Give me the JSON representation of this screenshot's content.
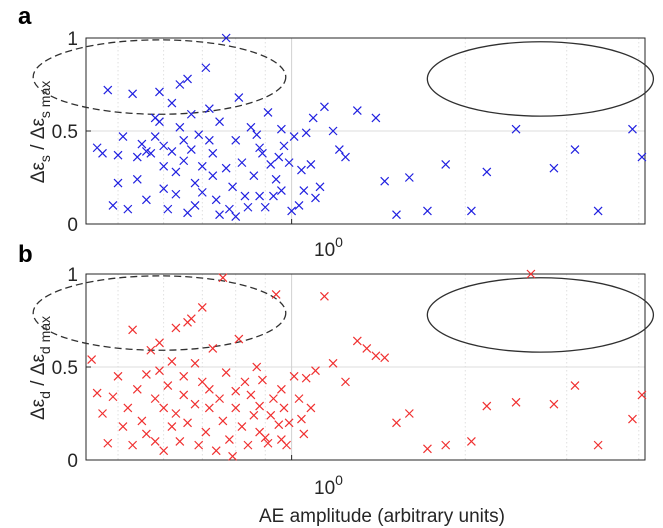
{
  "figure": {
    "xlabel": "AE amplitude (arbitrary units)",
    "x_tick_label": "10",
    "x_tick_exp": "0"
  },
  "chart_data": [
    {
      "type": "scatter",
      "panel": "a",
      "ylabel_main": "Δε",
      "ylabel_sub": "s",
      "ylabel_sep": " / Δε",
      "ylabel_sub2": "s max",
      "marker": "x",
      "color": "#2020e0",
      "x_scale": "log",
      "xlim": [
        0.44,
        4.1
      ],
      "ylim": [
        0,
        1
      ],
      "yticks": [
        "0",
        "0.5",
        "1"
      ],
      "grid": true,
      "ellipses": [
        {
          "style": "dashed",
          "cx": 0.59,
          "cy": 0.79,
          "rx_decades": 0.219,
          "ry": 0.2
        },
        {
          "style": "solid",
          "cx": 2.7,
          "cy": 0.78,
          "rx_decades": 0.196,
          "ry": 0.2
        }
      ],
      "points": [
        [
          0.46,
          0.41
        ],
        [
          0.48,
          0.72
        ],
        [
          0.47,
          0.38
        ],
        [
          0.49,
          0.1
        ],
        [
          0.5,
          0.37
        ],
        [
          0.51,
          0.47
        ],
        [
          0.5,
          0.22
        ],
        [
          0.52,
          0.08
        ],
        [
          0.53,
          0.7
        ],
        [
          0.54,
          0.36
        ],
        [
          0.55,
          0.43
        ],
        [
          0.54,
          0.24
        ],
        [
          0.56,
          0.39
        ],
        [
          0.56,
          0.13
        ],
        [
          0.57,
          0.38
        ],
        [
          0.58,
          0.57
        ],
        [
          0.58,
          0.47
        ],
        [
          0.59,
          0.71
        ],
        [
          0.59,
          0.55
        ],
        [
          0.6,
          0.42
        ],
        [
          0.6,
          0.31
        ],
        [
          0.6,
          0.19
        ],
        [
          0.61,
          0.08
        ],
        [
          0.62,
          0.65
        ],
        [
          0.62,
          0.39
        ],
        [
          0.63,
          0.28
        ],
        [
          0.63,
          0.16
        ],
        [
          0.64,
          0.75
        ],
        [
          0.64,
          0.52
        ],
        [
          0.65,
          0.45
        ],
        [
          0.65,
          0.34
        ],
        [
          0.66,
          0.06
        ],
        [
          0.66,
          0.78
        ],
        [
          0.67,
          0.59
        ],
        [
          0.67,
          0.4
        ],
        [
          0.68,
          0.22
        ],
        [
          0.68,
          0.1
        ],
        [
          0.69,
          0.48
        ],
        [
          0.7,
          0.31
        ],
        [
          0.7,
          0.17
        ],
        [
          0.71,
          0.84
        ],
        [
          0.72,
          0.62
        ],
        [
          0.72,
          0.45
        ],
        [
          0.73,
          0.38
        ],
        [
          0.73,
          0.26
        ],
        [
          0.74,
          0.13
        ],
        [
          0.75,
          0.55
        ],
        [
          0.75,
          0.05
        ],
        [
          0.77,
          1.0
        ],
        [
          0.77,
          0.3
        ],
        [
          0.78,
          0.08
        ],
        [
          0.79,
          0.2
        ],
        [
          0.8,
          0.45
        ],
        [
          0.8,
          0.04
        ],
        [
          0.81,
          0.68
        ],
        [
          0.82,
          0.33
        ],
        [
          0.83,
          0.15
        ],
        [
          0.84,
          0.09
        ],
        [
          0.85,
          0.52
        ],
        [
          0.86,
          0.26
        ],
        [
          0.87,
          0.48
        ],
        [
          0.88,
          0.41
        ],
        [
          0.88,
          0.15
        ],
        [
          0.89,
          0.38
        ],
        [
          0.9,
          0.09
        ],
        [
          0.91,
          0.6
        ],
        [
          0.92,
          0.32
        ],
        [
          0.93,
          0.15
        ],
        [
          0.94,
          0.24
        ],
        [
          0.95,
          0.36
        ],
        [
          0.96,
          0.51
        ],
        [
          0.96,
          0.18
        ],
        [
          0.97,
          0.42
        ],
        [
          0.99,
          0.33
        ],
        [
          1.0,
          0.07
        ],
        [
          1.01,
          0.47
        ],
        [
          1.03,
          0.1
        ],
        [
          1.04,
          0.29
        ],
        [
          1.05,
          0.18
        ],
        [
          1.06,
          0.49
        ],
        [
          1.08,
          0.32
        ],
        [
          1.09,
          0.57
        ],
        [
          1.1,
          0.14
        ],
        [
          1.12,
          0.2
        ],
        [
          1.14,
          0.63
        ],
        [
          1.18,
          0.5
        ],
        [
          1.21,
          0.4
        ],
        [
          1.24,
          0.36
        ],
        [
          1.3,
          0.61
        ],
        [
          1.4,
          0.57
        ],
        [
          1.45,
          0.23
        ],
        [
          1.52,
          0.05
        ],
        [
          1.6,
          0.25
        ],
        [
          1.72,
          0.07
        ],
        [
          1.85,
          0.32
        ],
        [
          2.05,
          0.07
        ],
        [
          2.18,
          0.28
        ],
        [
          2.45,
          0.51
        ],
        [
          2.85,
          0.3
        ],
        [
          3.1,
          0.4
        ],
        [
          3.4,
          0.07
        ],
        [
          3.9,
          0.51
        ],
        [
          4.05,
          0.36
        ]
      ]
    },
    {
      "type": "scatter",
      "panel": "b",
      "ylabel_main": "Δε",
      "ylabel_sub": "d",
      "ylabel_sep": " / Δε",
      "ylabel_sub2": "d max",
      "marker": "x",
      "color": "#f03030",
      "x_scale": "log",
      "xlim": [
        0.44,
        4.1
      ],
      "ylim": [
        0,
        1
      ],
      "yticks": [
        "0",
        "0.5",
        "1"
      ],
      "grid": true,
      "ellipses": [
        {
          "style": "dashed",
          "cx": 0.59,
          "cy": 0.79,
          "rx_decades": 0.219,
          "ry": 0.2
        },
        {
          "style": "solid",
          "cx": 2.7,
          "cy": 0.78,
          "rx_decades": 0.196,
          "ry": 0.2
        }
      ],
      "points": [
        [
          0.45,
          0.54
        ],
        [
          0.46,
          0.36
        ],
        [
          0.47,
          0.25
        ],
        [
          0.48,
          0.09
        ],
        [
          0.49,
          0.34
        ],
        [
          0.5,
          0.45
        ],
        [
          0.51,
          0.18
        ],
        [
          0.52,
          0.28
        ],
        [
          0.53,
          0.7
        ],
        [
          0.53,
          0.08
        ],
        [
          0.54,
          0.38
        ],
        [
          0.55,
          0.21
        ],
        [
          0.56,
          0.46
        ],
        [
          0.56,
          0.14
        ],
        [
          0.57,
          0.59
        ],
        [
          0.58,
          0.33
        ],
        [
          0.58,
          0.1
        ],
        [
          0.59,
          0.63
        ],
        [
          0.59,
          0.48
        ],
        [
          0.6,
          0.28
        ],
        [
          0.6,
          0.05
        ],
        [
          0.61,
          0.4
        ],
        [
          0.62,
          0.18
        ],
        [
          0.62,
          0.53
        ],
        [
          0.63,
          0.71
        ],
        [
          0.63,
          0.25
        ],
        [
          0.64,
          0.1
        ],
        [
          0.65,
          0.45
        ],
        [
          0.65,
          0.35
        ],
        [
          0.66,
          0.74
        ],
        [
          0.66,
          0.2
        ],
        [
          0.67,
          0.76
        ],
        [
          0.68,
          0.52
        ],
        [
          0.68,
          0.3
        ],
        [
          0.69,
          0.08
        ],
        [
          0.7,
          0.82
        ],
        [
          0.7,
          0.42
        ],
        [
          0.71,
          0.15
        ],
        [
          0.72,
          0.38
        ],
        [
          0.72,
          0.28
        ],
        [
          0.73,
          0.6
        ],
        [
          0.74,
          0.05
        ],
        [
          0.75,
          0.33
        ],
        [
          0.76,
          0.98
        ],
        [
          0.76,
          0.21
        ],
        [
          0.77,
          0.47
        ],
        [
          0.78,
          0.11
        ],
        [
          0.79,
          0.02
        ],
        [
          0.8,
          0.37
        ],
        [
          0.8,
          0.28
        ],
        [
          0.81,
          0.65
        ],
        [
          0.82,
          0.18
        ],
        [
          0.83,
          0.42
        ],
        [
          0.84,
          0.08
        ],
        [
          0.85,
          0.35
        ],
        [
          0.86,
          0.24
        ],
        [
          0.87,
          0.5
        ],
        [
          0.88,
          0.15
        ],
        [
          0.88,
          0.29
        ],
        [
          0.89,
          0.43
        ],
        [
          0.9,
          0.12
        ],
        [
          0.91,
          0.09
        ],
        [
          0.92,
          0.24
        ],
        [
          0.93,
          0.33
        ],
        [
          0.94,
          0.89
        ],
        [
          0.95,
          0.19
        ],
        [
          0.96,
          0.38
        ],
        [
          0.96,
          0.11
        ],
        [
          0.97,
          0.28
        ],
        [
          0.98,
          0.08
        ],
        [
          0.99,
          0.2
        ],
        [
          1.01,
          0.45
        ],
        [
          1.03,
          0.33
        ],
        [
          1.04,
          0.22
        ],
        [
          1.05,
          0.14
        ],
        [
          1.06,
          0.44
        ],
        [
          1.08,
          0.28
        ],
        [
          1.1,
          0.48
        ],
        [
          1.14,
          0.88
        ],
        [
          1.18,
          0.52
        ],
        [
          1.24,
          0.42
        ],
        [
          1.3,
          0.64
        ],
        [
          1.35,
          0.6
        ],
        [
          1.4,
          0.56
        ],
        [
          1.45,
          0.55
        ],
        [
          1.52,
          0.2
        ],
        [
          1.6,
          0.25
        ],
        [
          1.72,
          0.06
        ],
        [
          1.85,
          0.08
        ],
        [
          2.05,
          0.1
        ],
        [
          2.18,
          0.29
        ],
        [
          2.45,
          0.31
        ],
        [
          2.6,
          1.0
        ],
        [
          2.85,
          0.3
        ],
        [
          3.1,
          0.4
        ],
        [
          3.4,
          0.08
        ],
        [
          3.9,
          0.22
        ],
        [
          4.05,
          0.35
        ]
      ]
    }
  ]
}
